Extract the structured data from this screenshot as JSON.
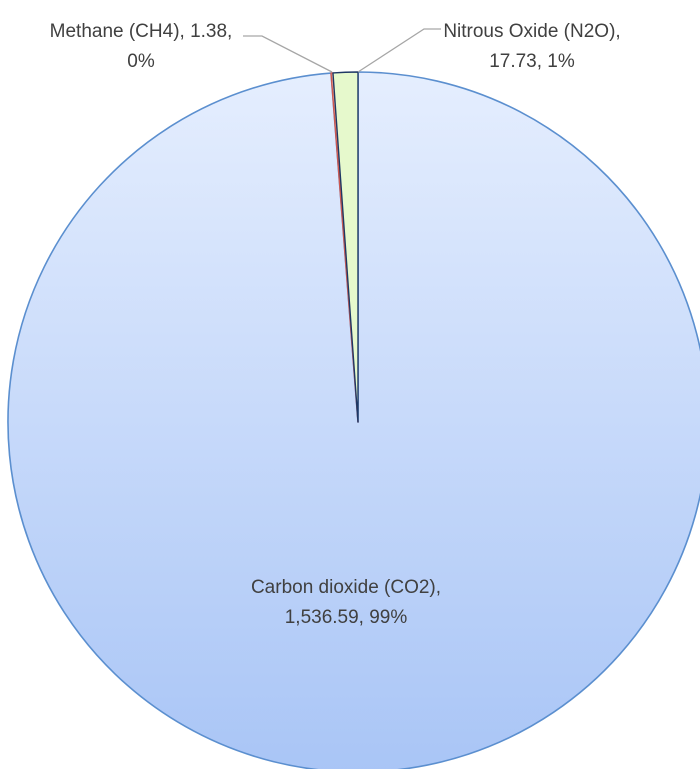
{
  "chart_data": {
    "type": "pie",
    "title": "",
    "slices": [
      {
        "name": "Carbon dioxide (CO2)",
        "value": 1536.59,
        "label_lines": [
          "Carbon dioxide (CO2),",
          "1,536.59, 99%"
        ],
        "color": "#b4cdf9",
        "stroke": "#5b8fcf"
      },
      {
        "name": "Methane (CH4)",
        "value": 1.38,
        "label_lines": [
          "Methane (CH4), 1.38,",
          "0%"
        ],
        "color": "#f3c7b6",
        "stroke": "#d0584f"
      },
      {
        "name": "Nitrous Oxide (N2O)",
        "value": 17.73,
        "label_lines": [
          "Nitrous Oxide (N2O),",
          "17.73, 1%"
        ],
        "color": "#e6f9cc",
        "stroke": "#1f3864"
      }
    ],
    "start_angle": "12 o'clock",
    "direction": "counterclockwise from CO2",
    "legend": "none",
    "data_labels": "category name, value, percentage"
  }
}
